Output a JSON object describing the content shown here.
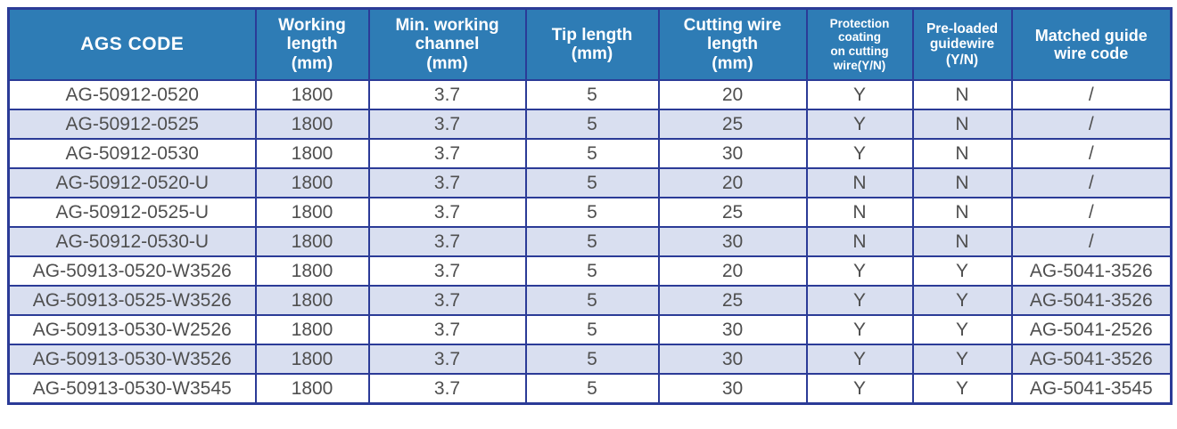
{
  "table": {
    "columns": [
      {
        "label": "AGS CODE"
      },
      {
        "label": "Working\nlength\n(mm)"
      },
      {
        "label": "Min. working\nchannel\n(mm)"
      },
      {
        "label": "Tip length\n(mm)"
      },
      {
        "label": "Cutting wire\nlength\n(mm)"
      },
      {
        "label": "Protection\ncoating\non cutting\nwire(Y/N)"
      },
      {
        "label": "Pre-loaded\nguidewire\n(Y/N)"
      },
      {
        "label": "Matched guide\nwire code"
      }
    ],
    "rows": [
      {
        "cells": [
          "AG-50912-0520",
          "1800",
          "3.7",
          "5",
          "20",
          "Y",
          "N",
          "/"
        ]
      },
      {
        "cells": [
          "AG-50912-0525",
          "1800",
          "3.7",
          "5",
          "25",
          "Y",
          "N",
          "/"
        ]
      },
      {
        "cells": [
          "AG-50912-0530",
          "1800",
          "3.7",
          "5",
          "30",
          "Y",
          "N",
          "/"
        ]
      },
      {
        "cells": [
          "AG-50912-0520-U",
          "1800",
          "3.7",
          "5",
          "20",
          "N",
          "N",
          "/"
        ]
      },
      {
        "cells": [
          "AG-50912-0525-U",
          "1800",
          "3.7",
          "5",
          "25",
          "N",
          "N",
          "/"
        ]
      },
      {
        "cells": [
          "AG-50912-0530-U",
          "1800",
          "3.7",
          "5",
          "30",
          "N",
          "N",
          "/"
        ]
      },
      {
        "cells": [
          "AG-50913-0520-W3526",
          "1800",
          "3.7",
          "5",
          "20",
          "Y",
          "Y",
          "AG-5041-3526"
        ]
      },
      {
        "cells": [
          "AG-50913-0525-W3526",
          "1800",
          "3.7",
          "5",
          "25",
          "Y",
          "Y",
          "AG-5041-3526"
        ]
      },
      {
        "cells": [
          "AG-50913-0530-W2526",
          "1800",
          "3.7",
          "5",
          "30",
          "Y",
          "Y",
          "AG-5041-2526"
        ]
      },
      {
        "cells": [
          "AG-50913-0530-W3526",
          "1800",
          "3.7",
          "5",
          "30",
          "Y",
          "Y",
          "AG-5041-3526"
        ]
      },
      {
        "cells": [
          "AG-50913-0530-W3545",
          "1800",
          "3.7",
          "5",
          "30",
          "Y",
          "Y",
          "AG-5041-3545"
        ]
      }
    ]
  },
  "colors": {
    "header_bg": "#2e7cb5",
    "header_text": "#ffffff",
    "border": "#2b3b97",
    "row_default": "#ffffff",
    "row_alt": "#d9dff0",
    "data_text": "#4f4f4f"
  }
}
